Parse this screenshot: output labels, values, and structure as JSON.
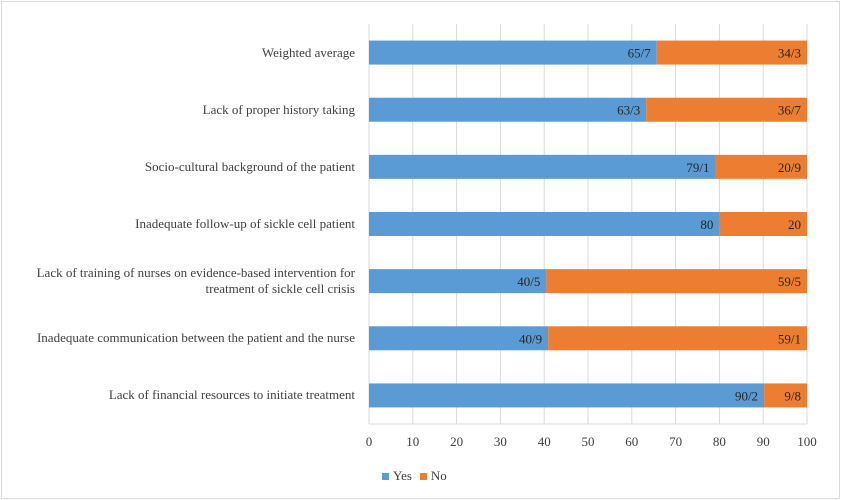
{
  "chart_data": {
    "type": "bar",
    "orientation": "horizontal",
    "stacked": true,
    "categories": [
      "Weighted average",
      "Lack of proper history taking",
      "Socio-cultural background of the patient",
      "Inadequate follow-up of sickle cell patient",
      "Lack of training of nurses on evidence-based intervention for treatment of sickle cell crisis",
      "Inadequate communication between the patient and the nurse",
      "Lack of financial resources to initiate treatment"
    ],
    "series": [
      {
        "name": "Yes",
        "color": "#5b9bd5",
        "values": [
          65.7,
          63.3,
          79.1,
          80,
          40.5,
          40.9,
          90.2
        ],
        "labels": [
          "65/7",
          "63/3",
          "79/1",
          "80",
          "40/5",
          "40/9",
          "90/2"
        ]
      },
      {
        "name": "No",
        "color": "#ed7d31",
        "values": [
          34.3,
          36.7,
          20.9,
          20,
          59.5,
          59.1,
          9.8
        ],
        "labels": [
          "34/3",
          "36/7",
          "20/9",
          "20",
          "59/5",
          "59/1",
          "9/8"
        ]
      }
    ],
    "xlim": [
      0,
      100
    ],
    "xticks": [
      "0",
      "10",
      "20",
      "30",
      "40",
      "50",
      "60",
      "70",
      "80",
      "90",
      "100"
    ],
    "grid": true,
    "legend_position": "bottom"
  }
}
